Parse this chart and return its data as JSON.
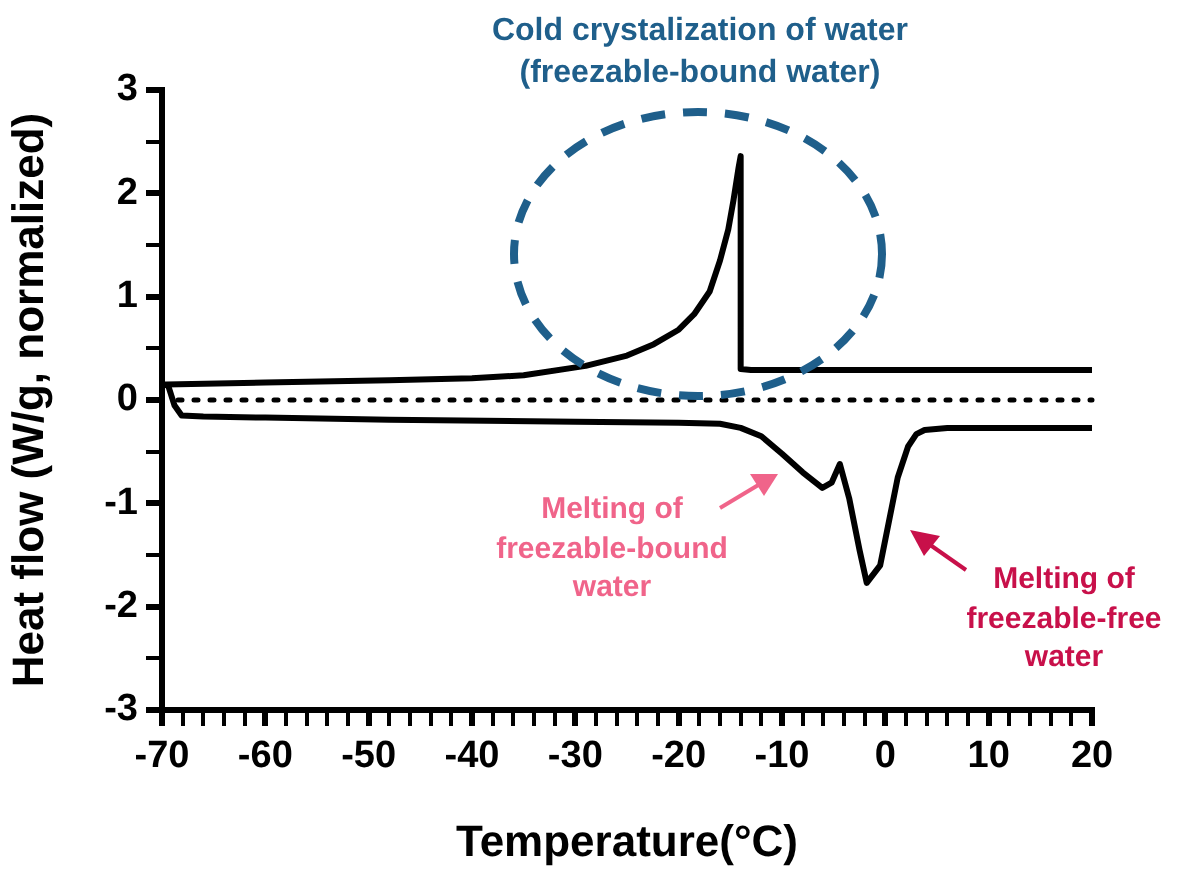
{
  "chart_data": {
    "type": "line",
    "xlabel": "Temperature(°C)",
    "ylabel": "Heat flow (W/g, normalized)",
    "xlim": [
      -70,
      20
    ],
    "ylim": [
      -3,
      3
    ],
    "xticks": [
      -70,
      {
        "value": -68,
        "label": null
      },
      {
        "value": -66,
        "label": null
      },
      {
        "value": -64,
        "label": null
      },
      {
        "value": -62,
        "label": null
      },
      -60,
      {
        "value": -58,
        "label": null
      },
      {
        "value": -56,
        "label": null
      },
      {
        "value": -54,
        "label": null
      },
      {
        "value": -52,
        "label": null
      },
      -50,
      {
        "value": -48,
        "label": null
      },
      {
        "value": -46,
        "label": null
      },
      {
        "value": -44,
        "label": null
      },
      {
        "value": -42,
        "label": null
      },
      -40,
      {
        "value": -38,
        "label": null
      },
      {
        "value": -36,
        "label": null
      },
      {
        "value": -34,
        "label": null
      },
      {
        "value": -32,
        "label": null
      },
      -30,
      {
        "value": -28,
        "label": null
      },
      {
        "value": -26,
        "label": null
      },
      {
        "value": -24,
        "label": null
      },
      {
        "value": -22,
        "label": null
      },
      -20,
      {
        "value": -18,
        "label": null
      },
      {
        "value": -16,
        "label": null
      },
      {
        "value": -14,
        "label": null
      },
      {
        "value": -12,
        "label": null
      },
      -10,
      {
        "value": -8,
        "label": null
      },
      {
        "value": -6,
        "label": null
      },
      {
        "value": -4,
        "label": null
      },
      {
        "value": -2,
        "label": null
      },
      0,
      {
        "value": 2,
        "label": null
      },
      {
        "value": 4,
        "label": null
      },
      {
        "value": 6,
        "label": null
      },
      {
        "value": 8,
        "label": null
      },
      10,
      {
        "value": 12,
        "label": null
      },
      {
        "value": 14,
        "label": null
      },
      {
        "value": 16,
        "label": null
      },
      {
        "value": 18,
        "label": null
      },
      20
    ],
    "yticks": [
      -3,
      {
        "value": -2.5,
        "label": null
      },
      -2,
      {
        "value": -1.5,
        "label": null
      },
      -1,
      {
        "value": -0.5,
        "label": null
      },
      0,
      {
        "value": 0.5,
        "label": null
      },
      1,
      {
        "value": 1.5,
        "label": null
      },
      2,
      {
        "value": 2.5,
        "label": null
      },
      3
    ],
    "grid": false,
    "legend": false,
    "marker": "none",
    "line_style": "solid",
    "series": [
      {
        "color": "#000000",
        "x": [
          -70,
          -69.6,
          -60,
          -48,
          -40,
          -35,
          -29,
          -25,
          -22.4,
          -20,
          -18.5,
          -17,
          -16,
          -15.2,
          -14.7,
          -14.2,
          -14,
          -14,
          -13,
          0,
          10,
          20
        ],
        "values": [
          0.15,
          0.15,
          0.17,
          0.19,
          0.21,
          0.24,
          0.33,
          0.43,
          0.54,
          0.68,
          0.83,
          1.05,
          1.35,
          1.65,
          1.93,
          2.25,
          2.36,
          0.3,
          0.29,
          0.29,
          0.29,
          0.29
        ]
      },
      {
        "color": "#000000",
        "x": [
          -70,
          -69.4,
          -68.8,
          -68.1,
          -66,
          -60,
          -48,
          -30,
          -20,
          -16,
          -14,
          -12,
          -10,
          -8,
          -6.1,
          -5.2,
          -4.4,
          -3.5,
          -2.5,
          -1.8,
          -0.5,
          0.5,
          1.2,
          2.2,
          3,
          3.8,
          6,
          10,
          20
        ],
        "values": [
          0.15,
          0.14,
          -0.05,
          -0.15,
          -0.16,
          -0.17,
          -0.19,
          -0.21,
          -0.22,
          -0.23,
          -0.27,
          -0.35,
          -0.52,
          -0.7,
          -0.85,
          -0.8,
          -0.62,
          -0.95,
          -1.45,
          -1.77,
          -1.6,
          -1.1,
          -0.75,
          -0.45,
          -0.33,
          -0.29,
          -0.27,
          -0.27,
          -0.27
        ]
      }
    ],
    "ref_lines": [
      {
        "axis": "y",
        "value": 0,
        "color": "#000000",
        "line_style": "dotted"
      }
    ],
    "annotations": [
      "Cold crystalization of water\n(freezable-bound water)",
      "Melting of\nfreezable-bound\nwater",
      "Melting of\nfreezable-free\nwater"
    ]
  }
}
